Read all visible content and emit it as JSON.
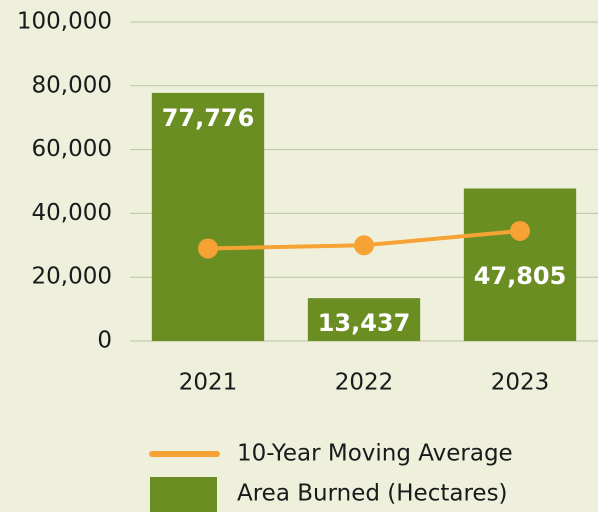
{
  "chart_data": {
    "type": "bar",
    "categories": [
      "2021",
      "2022",
      "2023"
    ],
    "series": [
      {
        "name": "Area Burned (Hectares)",
        "type": "bar",
        "color": "#6b8e23",
        "values": [
          77776,
          13437,
          47805
        ],
        "value_labels": [
          "77,776",
          "13,437",
          "47,805"
        ]
      },
      {
        "name": "10-Year Moving Average",
        "type": "line",
        "color": "#f7a234",
        "values": [
          29000,
          30000,
          34500
        ]
      }
    ],
    "ylim": [
      0,
      100000
    ],
    "yticks": [
      0,
      {
        "value": 20000,
        "label": "20,000"
      },
      {
        "value": 40000,
        "label": "40,000"
      },
      {
        "value": 60000,
        "label": "60,000"
      },
      {
        "value": 80000,
        "label": "80,000"
      },
      {
        "value": 100000,
        "label": "100,000"
      }
    ],
    "grid": true
  }
}
